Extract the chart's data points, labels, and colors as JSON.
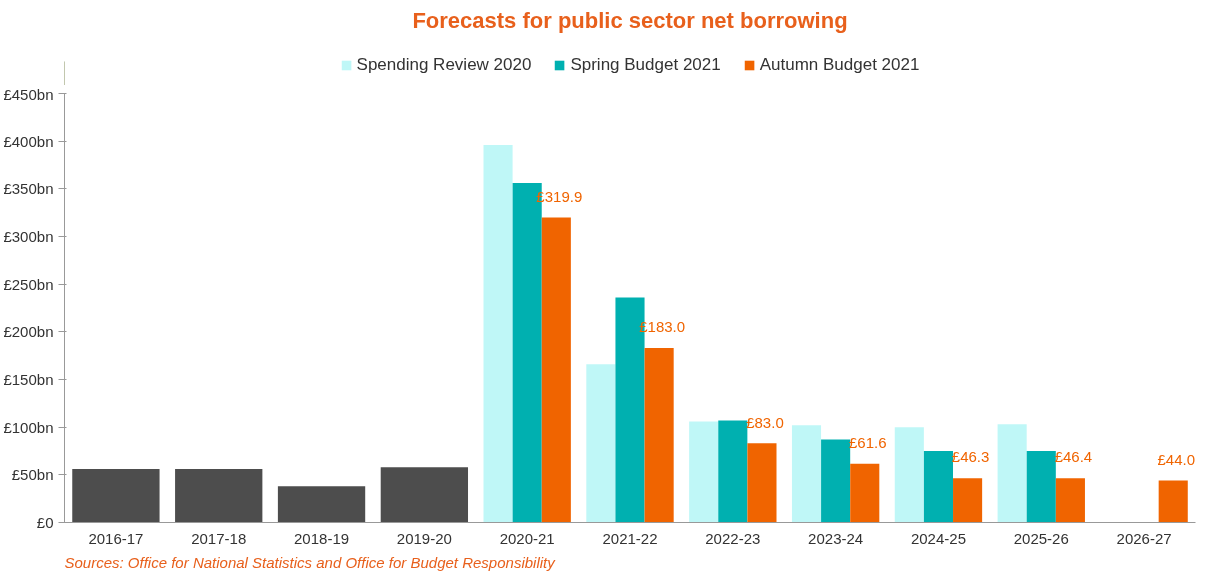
{
  "chart_data": {
    "type": "bar",
    "title": "Forecasts for public sector net borrowing",
    "categories": [
      "2016-17",
      "2017-18",
      "2018-19",
      "2019-20",
      "2020-21",
      "2021-22",
      "2022-23",
      "2023-24",
      "2024-25",
      "2025-26",
      "2026-27"
    ],
    "series": [
      {
        "color": "#4d4d4d",
        "values": [
          56,
          56,
          38,
          58,
          null,
          null,
          null,
          null,
          null,
          null,
          null
        ]
      },
      {
        "name": "Spending Review 2020",
        "color": "#bff7f7",
        "values": [
          null,
          null,
          null,
          null,
          396,
          166,
          106,
          102,
          100,
          103,
          null
        ]
      },
      {
        "name": "Spring Budget 2021",
        "color": "#00b0b0",
        "values": [
          null,
          null,
          null,
          null,
          356,
          236,
          107,
          87,
          75,
          75,
          null
        ]
      },
      {
        "name": "Autumn Budget 2021",
        "color": "#f06400",
        "values": [
          null,
          null,
          null,
          null,
          319.9,
          183.0,
          83.0,
          61.6,
          46.3,
          46.4,
          44.0
        ],
        "value_labels": [
          null,
          null,
          null,
          null,
          "£319.9",
          "£183.0",
          "£83.0",
          "£61.6",
          "£46.3",
          "£46.4",
          "£44.0"
        ]
      }
    ],
    "ylim": [
      0,
      450
    ],
    "yticks": [
      {
        "value": 0,
        "label": "£0"
      },
      {
        "value": 50,
        "label": "£50bn"
      },
      {
        "value": 100,
        "label": "£100bn"
      },
      {
        "value": 150,
        "label": "£150bn"
      },
      {
        "value": 200,
        "label": "£200bn"
      },
      {
        "value": 250,
        "label": "£250bn"
      },
      {
        "value": 300,
        "label": "£300bn"
      },
      {
        "value": 350,
        "label": "£350bn"
      },
      {
        "value": 400,
        "label": "£400bn"
      },
      {
        "value": 450,
        "label": "£450bn"
      }
    ],
    "grid": false,
    "legend": "top",
    "annotations": [
      "Sources:  Office for National Statistics and Office for Budget Responsibility"
    ]
  }
}
